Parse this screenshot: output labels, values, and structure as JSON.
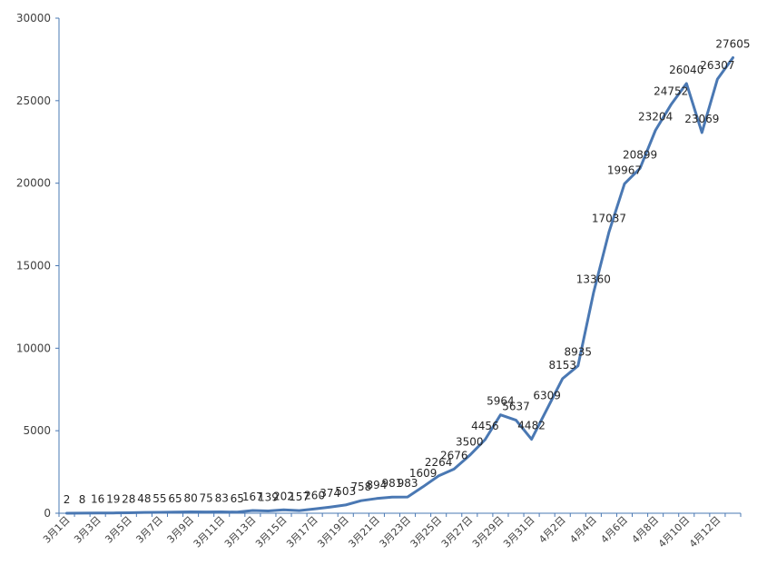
{
  "chart_data": {
    "type": "line",
    "title": "",
    "xlabel": "",
    "ylabel": "",
    "ylim": [
      0,
      30000
    ],
    "yticks": [
      0,
      5000,
      10000,
      15000,
      20000,
      25000,
      30000
    ],
    "grid": false,
    "legend": "none",
    "line_color": "#4a78b3",
    "categories": [
      "3月1日",
      "3月2日",
      "3月3日",
      "3月4日",
      "3月5日",
      "3月6日",
      "3月7日",
      "3月8日",
      "3月9日",
      "3月10日",
      "3月11日",
      "3月12日",
      "3月13日",
      "3月14日",
      "3月15日",
      "3月16日",
      "3月17日",
      "3月18日",
      "3月19日",
      "3月20日",
      "3月21日",
      "3月22日",
      "3月23日",
      "3月24日",
      "3月25日",
      "3月26日",
      "3月27日",
      "3月28日",
      "3月29日",
      "3月30日",
      "3月31日",
      "4月1日",
      "4月2日",
      "4月3日",
      "4月4日",
      "4月5日",
      "4月6日",
      "4月7日",
      "4月8日",
      "4月9日",
      "4月10日",
      "4月11日",
      "4月12日",
      "4月13日"
    ],
    "x_tick_labels": [
      "3月1日",
      "3月3日",
      "3月5日",
      "3月7日",
      "3月9日",
      "3月11日",
      "3月13日",
      "3月15日",
      "3月17日",
      "3月19日",
      "3月21日",
      "3月23日",
      "3月25日",
      "3月27日",
      "3月29日",
      "3月31日",
      "4月2日",
      "4月4日",
      "4月6日",
      "4月8日",
      "4月10日",
      "4月12日"
    ],
    "values": [
      2,
      8,
      16,
      19,
      28,
      48,
      55,
      65,
      80,
      75,
      83,
      65,
      167,
      139,
      202,
      157,
      260,
      374,
      503,
      758,
      894,
      981,
      983,
      1609,
      2264,
      2676,
      3500,
      4456,
      5964,
      5637,
      4482,
      6309,
      8153,
      8935,
      13360,
      17037,
      19967,
      20899,
      23204,
      24752,
      26040,
      23069,
      26307,
      27605
    ]
  }
}
